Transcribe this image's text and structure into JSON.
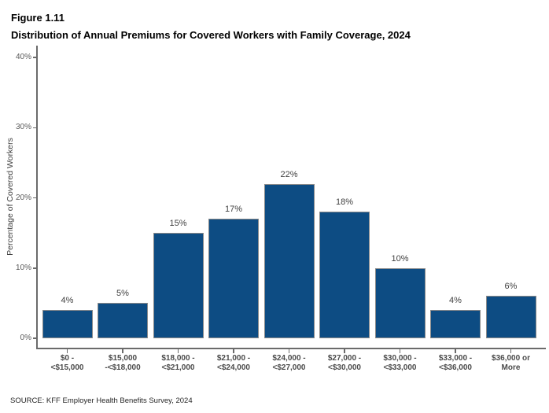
{
  "header": {
    "figure_label": "Figure 1.11",
    "title": "Distribution of Annual Premiums for Covered Workers with Family Coverage, 2024"
  },
  "chart_data": {
    "type": "bar",
    "title": "Distribution of Annual Premiums for Covered Workers with Family Coverage, 2024",
    "categories": [
      [
        "$0 -",
        "<$15,000"
      ],
      [
        "$15,000",
        "-<$18,000"
      ],
      [
        "$18,000 -",
        "<$21,000"
      ],
      [
        "$21,000 -",
        "<$24,000"
      ],
      [
        "$24,000 -",
        "<$27,000"
      ],
      [
        "$27,000 -",
        "<$30,000"
      ],
      [
        "$30,000 -",
        "<$33,000"
      ],
      [
        "$33,000 -",
        "<$36,000"
      ],
      [
        "$36,000 or",
        "More"
      ]
    ],
    "values": [
      4,
      5,
      15,
      17,
      22,
      18,
      10,
      4,
      6
    ],
    "value_labels": [
      "4%",
      "5%",
      "15%",
      "17%",
      "22%",
      "18%",
      "10%",
      "4%",
      "6%"
    ],
    "xlabel": "",
    "ylabel": "Percentage of Covered Workers",
    "ylim": [
      0,
      40
    ],
    "ytick_labels": [
      "0%",
      "10%",
      "20%",
      "30%",
      "40%"
    ],
    "ytick_values": [
      0,
      10,
      20,
      30,
      40
    ],
    "grid": "off",
    "legend": "none",
    "bar_color": "#0d4c83",
    "bar_border_color": "#8a8a8a"
  },
  "footer": {
    "source": "SOURCE: KFF Employer Health Benefits Survey, 2024"
  }
}
